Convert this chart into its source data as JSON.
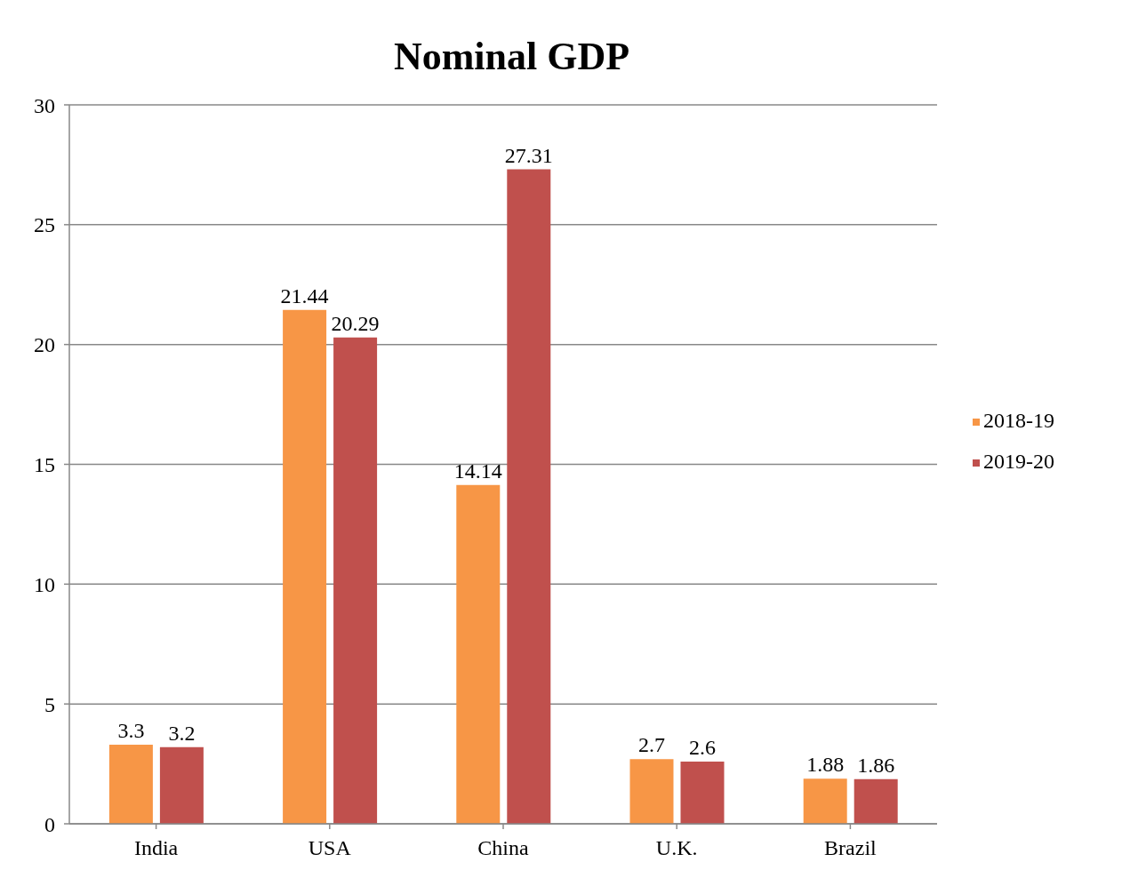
{
  "chart_data": {
    "type": "bar",
    "title": "Nominal GDP",
    "categories": [
      "India",
      "USA",
      "China",
      "U.K.",
      "Brazil"
    ],
    "series": [
      {
        "name": "2018-19",
        "color": "#f79646",
        "values": [
          3.3,
          21.44,
          14.14,
          2.7,
          1.88
        ]
      },
      {
        "name": "2019-20",
        "color": "#c0504d",
        "values": [
          3.2,
          20.29,
          27.31,
          2.6,
          1.86
        ]
      }
    ],
    "ylim": [
      0,
      30
    ],
    "yticks": [
      0,
      5,
      10,
      15,
      20,
      25,
      30
    ],
    "grid": "y",
    "legend": "right",
    "data_labels": true
  }
}
